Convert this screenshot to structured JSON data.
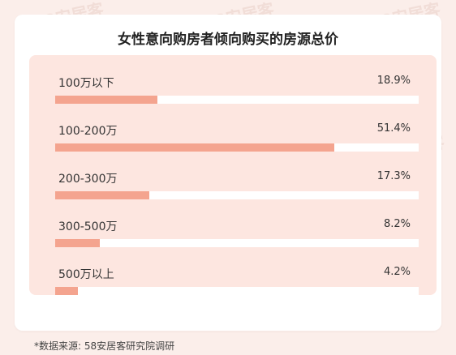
{
  "title": "女性意向购房者倾向购买的房源总价",
  "source": "*数据来源: 58安居客研究院调研",
  "watermark": "58安居客",
  "colors": {
    "bar": "#f4a48f",
    "panel": "#fde6e0",
    "background": "#fbeeea"
  },
  "chart_data": {
    "type": "bar",
    "orientation": "horizontal",
    "title": "女性意向购房者倾向购买的房源总价",
    "categories": [
      "100万以下",
      "100-200万",
      "200-300万",
      "300-500万",
      "500万以上"
    ],
    "values": [
      18.9,
      51.4,
      17.3,
      8.2,
      4.2
    ],
    "labels": [
      "18.9%",
      "51.4%",
      "17.3%",
      "8.2%",
      "4.2%"
    ],
    "unit": "%",
    "xlim": [
      0,
      67
    ]
  }
}
